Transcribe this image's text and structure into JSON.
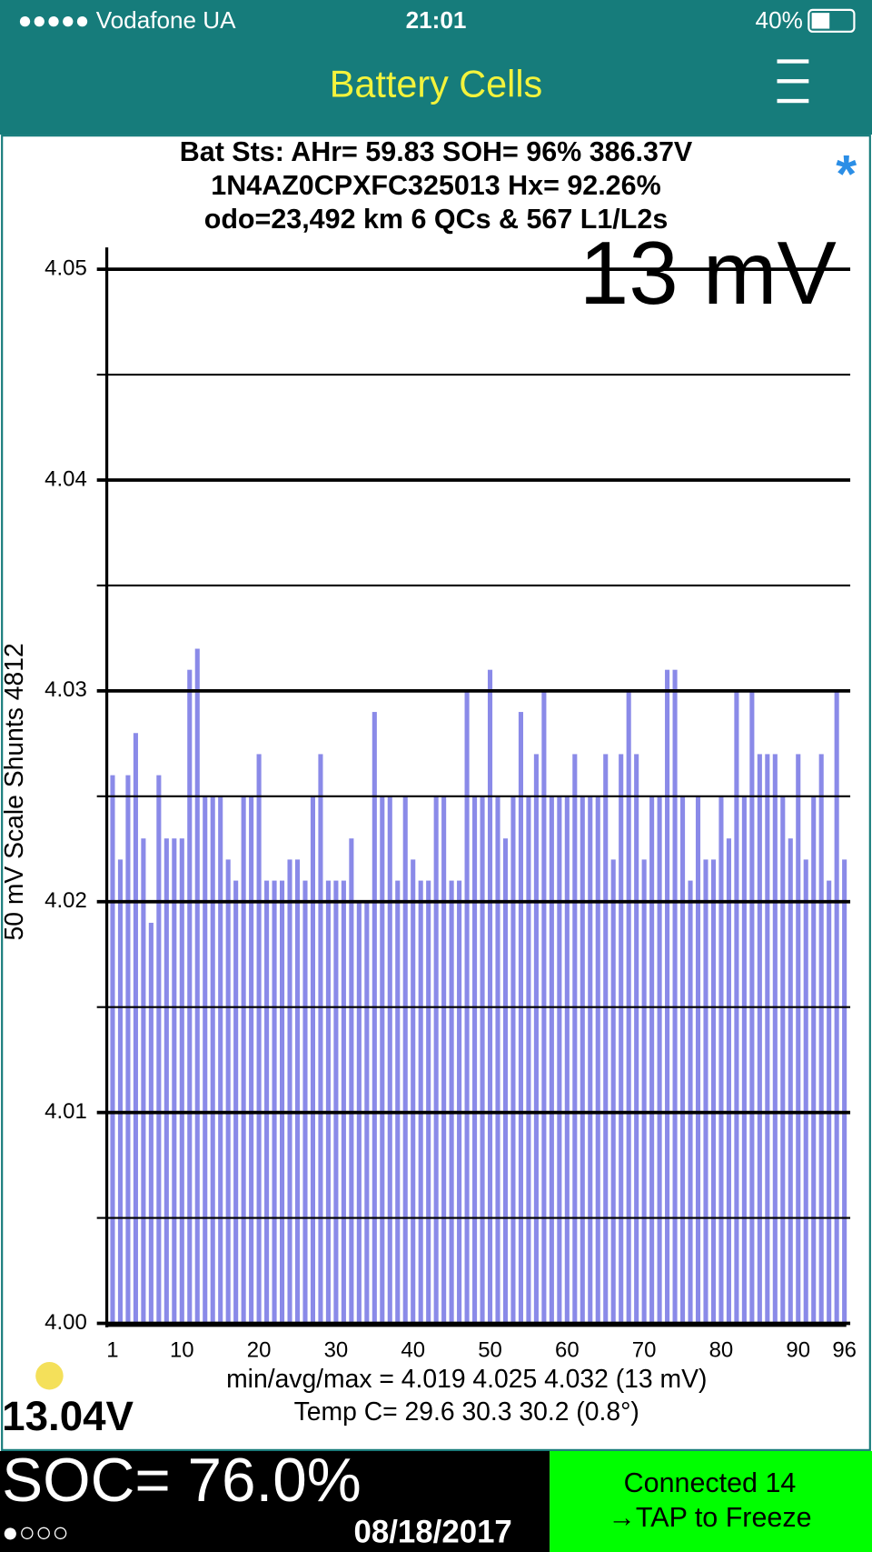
{
  "status": {
    "carrier": "●●●●● Vodafone UA",
    "time": "21:01",
    "battery": "40%"
  },
  "header": {
    "title": "Battery Cells"
  },
  "marker": "*",
  "chart_data": {
    "type": "bar",
    "title_lines": [
      "Bat Sts:  AHr= 59.83  SOH= 96%   386.37V",
      "1N4AZ0CPXFC325013   Hx= 92.26%",
      "odo=23,492 km 6 QCs & 567 L1/L2s"
    ],
    "annotation": "13 mV",
    "ylabel": "50 mV Scale   Shunts 4812",
    "categories": [
      "1",
      null,
      null,
      null,
      null,
      null,
      null,
      null,
      null,
      "10",
      null,
      null,
      null,
      null,
      null,
      null,
      null,
      null,
      null,
      "20",
      null,
      null,
      null,
      null,
      null,
      null,
      null,
      null,
      null,
      "30",
      null,
      null,
      null,
      null,
      null,
      null,
      null,
      null,
      null,
      "40",
      null,
      null,
      null,
      null,
      null,
      null,
      null,
      null,
      null,
      "50",
      null,
      null,
      null,
      null,
      null,
      null,
      null,
      null,
      null,
      "60",
      null,
      null,
      null,
      null,
      null,
      null,
      null,
      null,
      null,
      "70",
      null,
      null,
      null,
      null,
      null,
      null,
      null,
      null,
      null,
      "80",
      null,
      null,
      null,
      null,
      null,
      null,
      null,
      null,
      null,
      "90",
      null,
      null,
      null,
      null,
      null,
      "96"
    ],
    "values": [
      4.026,
      4.022,
      4.026,
      4.028,
      4.023,
      4.019,
      4.026,
      4.023,
      4.023,
      4.023,
      4.031,
      4.032,
      4.025,
      4.025,
      4.025,
      4.022,
      4.021,
      4.025,
      4.025,
      4.027,
      4.021,
      4.021,
      4.021,
      4.022,
      4.022,
      4.021,
      4.025,
      4.027,
      4.021,
      4.021,
      4.021,
      4.023,
      4.02,
      4.02,
      4.029,
      4.025,
      4.025,
      4.021,
      4.025,
      4.022,
      4.021,
      4.021,
      4.025,
      4.025,
      4.021,
      4.021,
      4.03,
      4.025,
      4.025,
      4.031,
      4.025,
      4.023,
      4.025,
      4.029,
      4.025,
      4.027,
      4.03,
      4.025,
      4.025,
      4.025,
      4.027,
      4.025,
      4.025,
      4.025,
      4.027,
      4.022,
      4.027,
      4.03,
      4.027,
      4.022,
      4.025,
      4.025,
      4.031,
      4.031,
      4.025,
      4.021,
      4.025,
      4.022,
      4.022,
      4.025,
      4.023,
      4.03,
      4.025,
      4.03,
      4.027,
      4.027,
      4.027,
      4.025,
      4.023,
      4.027,
      4.022,
      4.025,
      4.027,
      4.021,
      4.03,
      4.022
    ],
    "color": "#8a8ae8",
    "ylim": [
      4.0,
      4.05
    ],
    "yticks": [
      {
        "value": 4.0,
        "label": "4.00"
      },
      4.01,
      4.02,
      4.03,
      4.04,
      4.05
    ],
    "minor_yticks": [
      4.005,
      4.015,
      4.025,
      4.035,
      4.045
    ],
    "grid": true,
    "notes": [
      "min/avg/max = 4.019 4.025 4.032  (13 mV)",
      "Temp C= 29.6  30.3  30.2  (0.8°)"
    ]
  },
  "footer": {
    "pack_voltage": "13.04V",
    "soc": "SOC= 76.0%",
    "dots": "●○○○",
    "date": "08/18/2017",
    "status_lines": [
      "Connected 14",
      "→TAP to Freeze"
    ]
  }
}
